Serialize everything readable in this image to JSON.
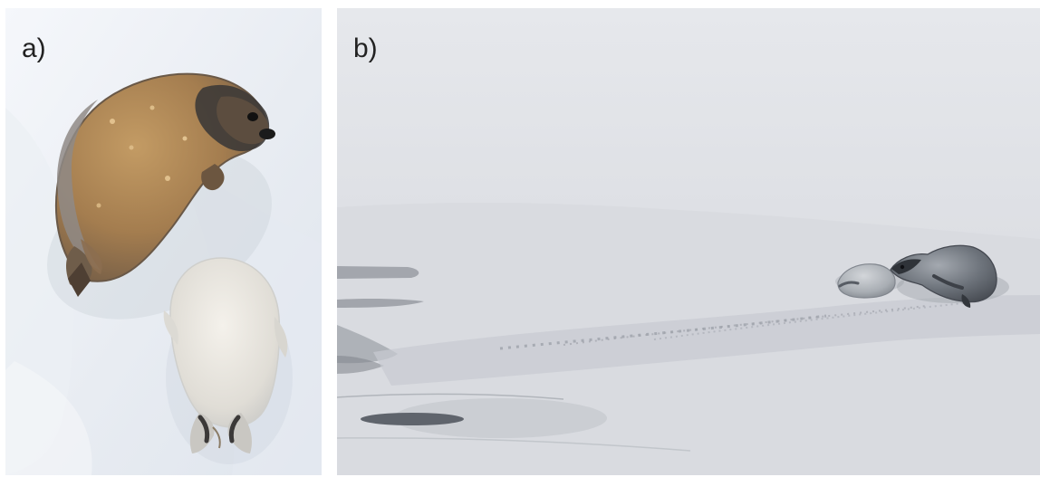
{
  "panels": [
    {
      "label": "a)",
      "content": "adult-seal-and-pup-on-snow"
    },
    {
      "label": "b)",
      "content": "two-seals-on-ice-with-tracks"
    }
  ],
  "colors": {
    "snow_light": "#f2f4f8",
    "snow_shadow": "#d7dde7",
    "adult_seal_brown": "#a7814f",
    "pup_fur": "#e7e4de",
    "ice_gray": "#d6d8dd",
    "dark_seal_gray": "#616770"
  }
}
